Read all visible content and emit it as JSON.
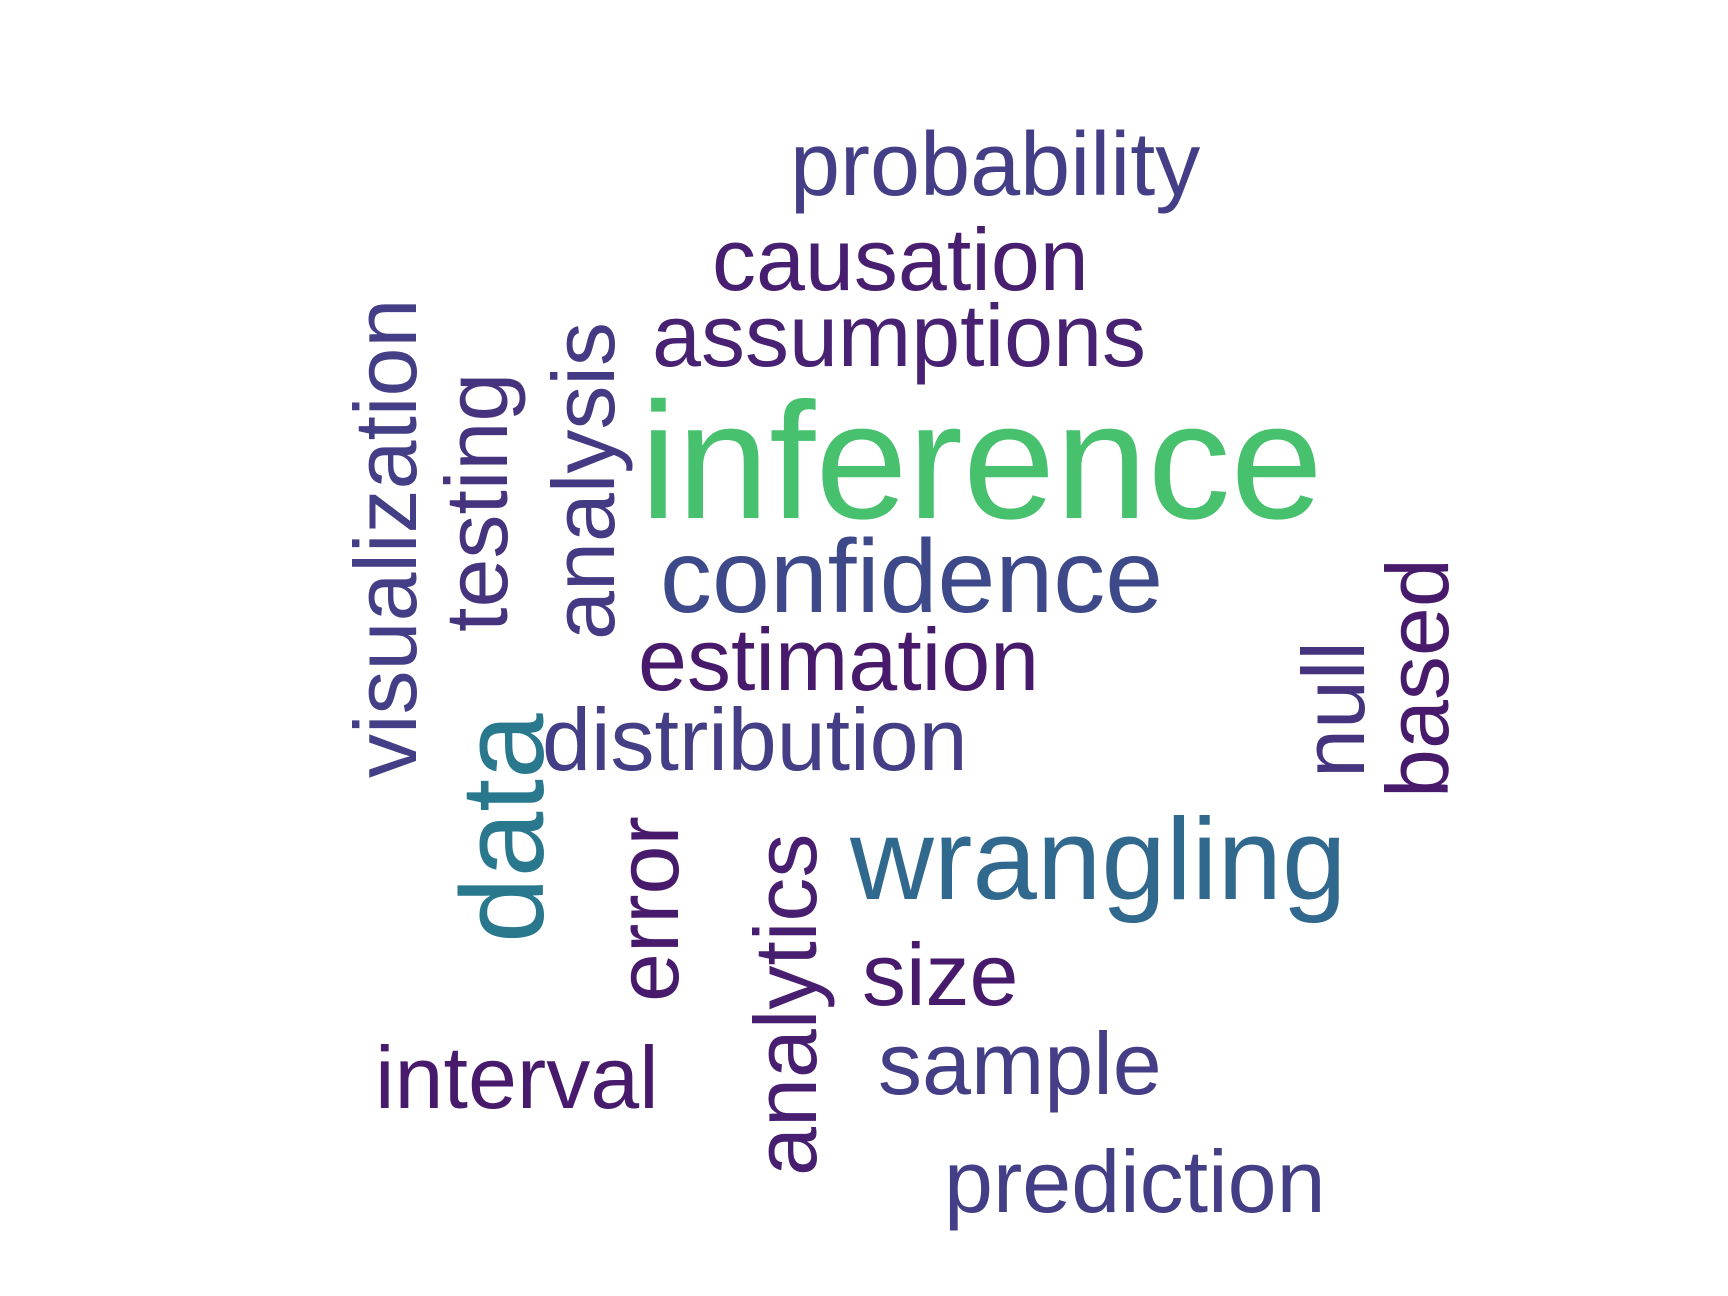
{
  "words": [
    {
      "id": "inference",
      "text": "inference",
      "color": "#47c16e"
    },
    {
      "id": "wrangling",
      "text": "wrangling",
      "color": "#31688e"
    },
    {
      "id": "data",
      "text": "data",
      "color": "#2a788e"
    },
    {
      "id": "confidence",
      "text": "confidence",
      "color": "#3e4989"
    },
    {
      "id": "probability",
      "text": "probability",
      "color": "#433e85"
    },
    {
      "id": "causation",
      "text": "causation",
      "color": "#481f70"
    },
    {
      "id": "assumptions",
      "text": "assumptions",
      "color": "#482173"
    },
    {
      "id": "estimation",
      "text": "estimation",
      "color": "#481a6c"
    },
    {
      "id": "distribution",
      "text": "distribution",
      "color": "#433e85"
    },
    {
      "id": "visualization",
      "text": "visualization",
      "color": "#433e85"
    },
    {
      "id": "testing",
      "text": "testing",
      "color": "#46337e"
    },
    {
      "id": "analysis",
      "text": "analysis",
      "color": "#443983"
    },
    {
      "id": "null",
      "text": "null",
      "color": "#46337e"
    },
    {
      "id": "based",
      "text": "based",
      "color": "#481a6c"
    },
    {
      "id": "error",
      "text": "error",
      "color": "#481a6c"
    },
    {
      "id": "analytics",
      "text": "analytics",
      "color": "#481f70"
    },
    {
      "id": "size",
      "text": "size",
      "color": "#481a6c"
    },
    {
      "id": "interval",
      "text": "interval",
      "color": "#481a6c"
    },
    {
      "id": "sample",
      "text": "sample",
      "color": "#433e85"
    },
    {
      "id": "prediction",
      "text": "prediction",
      "color": "#433e85"
    }
  ]
}
